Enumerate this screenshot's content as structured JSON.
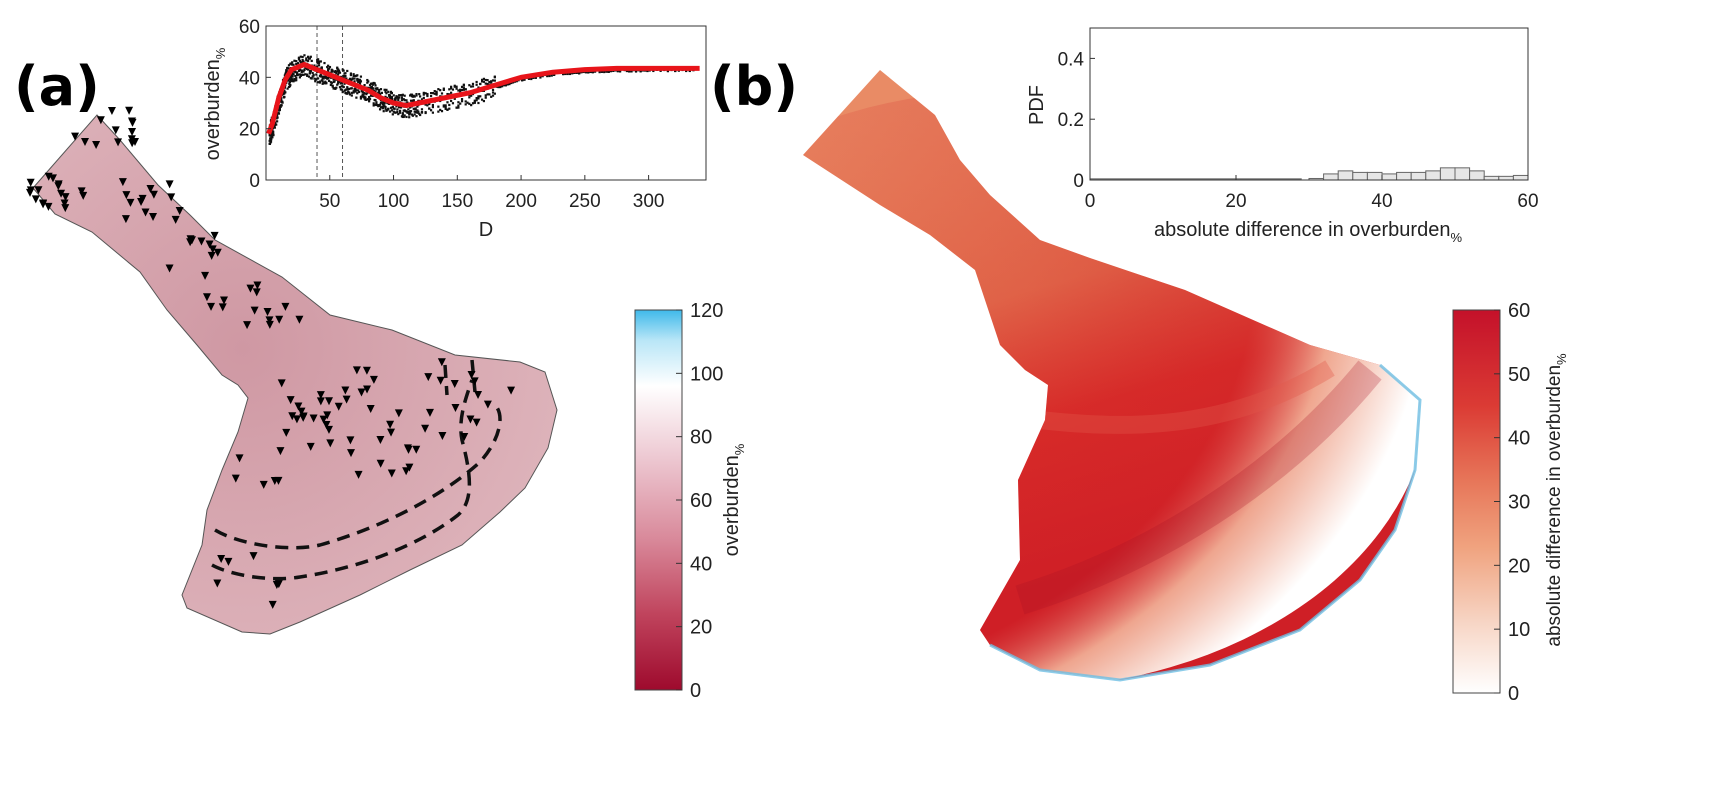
{
  "panel_a": {
    "label": "(a)",
    "inset": {
      "ylabel": "overburden",
      "ylabel_sub": "%",
      "xlabel": "D",
      "yticks": [
        "0",
        "20",
        "40",
        "60"
      ],
      "xticks": [
        "50",
        "100",
        "150",
        "200",
        "250",
        "300"
      ]
    },
    "colorbar": {
      "label": "overburden",
      "label_sub": "%",
      "ticks": [
        "0",
        "20",
        "40",
        "60",
        "80",
        "100",
        "120"
      ]
    }
  },
  "panel_b": {
    "label": "(b)",
    "inset": {
      "ylabel": "PDF",
      "xlabel": "absolute difference in overburden",
      "xlabel_sub": "%",
      "yticks": [
        "0",
        "0.2",
        "0.4"
      ],
      "xticks": [
        "0",
        "20",
        "40",
        "60"
      ]
    },
    "colorbar": {
      "label": "absolute difference in overburden",
      "label_sub": "%",
      "ticks": [
        "0",
        "10",
        "20",
        "30",
        "40",
        "50",
        "60"
      ]
    }
  },
  "chart_data": [
    {
      "type": "line",
      "series": [
        {
          "x": [
            2,
            5,
            10,
            15,
            20,
            30,
            40,
            50,
            60,
            70,
            80,
            90,
            100,
            110,
            120,
            140,
            160,
            180,
            200,
            225,
            250,
            275,
            300,
            340
          ],
          "y": [
            18,
            22,
            32,
            39,
            43,
            45,
            43,
            41,
            39,
            37,
            35,
            32,
            30,
            29,
            30,
            32,
            34,
            37,
            40,
            42,
            43,
            43.5,
            43.5,
            43.5
          ]
        }
      ],
      "xlim": [
        0,
        345
      ],
      "ylim": [
        0,
        60
      ],
      "vlines": [
        40,
        60
      ]
    },
    {
      "type": "bar",
      "bin_width": 2,
      "x": [
        30,
        32,
        34,
        36,
        38,
        40,
        42,
        44,
        46,
        48,
        50,
        52,
        54,
        56,
        58
      ],
      "values": [
        0.005,
        0.02,
        0.03,
        0.025,
        0.025,
        0.02,
        0.025,
        0.025,
        0.03,
        0.04,
        0.04,
        0.03,
        0.012,
        0.012,
        0.015
      ],
      "xlim": [
        0,
        60
      ],
      "ylim": [
        0,
        0.5
      ]
    }
  ]
}
